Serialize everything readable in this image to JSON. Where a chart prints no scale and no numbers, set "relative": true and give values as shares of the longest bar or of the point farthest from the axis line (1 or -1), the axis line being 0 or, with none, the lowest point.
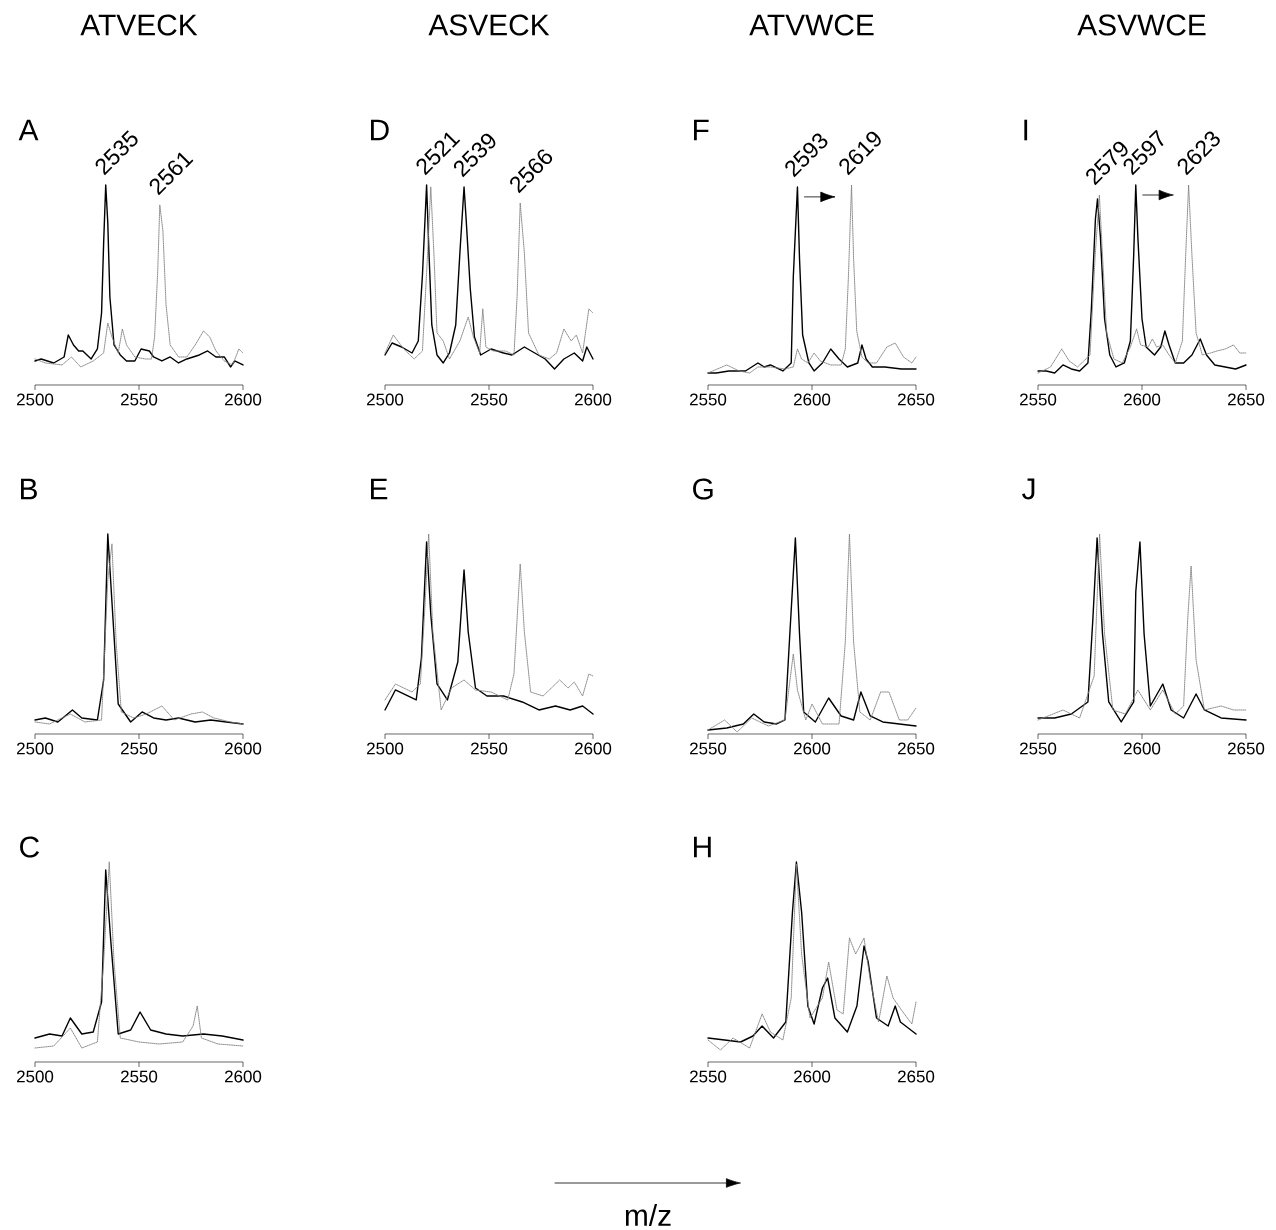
{
  "chart_data": [
    {
      "type": "line",
      "title": "ATVECK",
      "subtitle": "A",
      "relative": true,
      "xlim": [
        2500,
        2600
      ],
      "xticks": [
        2500,
        2550,
        2600
      ],
      "annotations": [
        {
          "text": "2535",
          "x": 2535,
          "y": 1
        },
        {
          "text": "2561",
          "x": 2561,
          "y": 0.9
        }
      ],
      "series": [
        {
          "color": "#000000",
          "line_style": "solid",
          "x": [
            2500,
            2503,
            2509,
            2514,
            2516,
            2518.5,
            2521,
            2523,
            2527,
            2530,
            2532,
            2533,
            2534,
            2535,
            2536,
            2538,
            2541,
            2544,
            2548,
            2551,
            2555,
            2557,
            2561,
            2565,
            2569,
            2573,
            2579,
            2583,
            2587,
            2591,
            2594,
            2596,
            2600
          ],
          "values": [
            0.12,
            0.13,
            0.11,
            0.14,
            0.25,
            0.2,
            0.17,
            0.17,
            0.13,
            0.18,
            0.36,
            0.71,
            1,
            0.81,
            0.44,
            0.2,
            0.15,
            0.12,
            0.12,
            0.18,
            0.17,
            0.14,
            0.12,
            0.14,
            0.11,
            0.13,
            0.15,
            0.17,
            0.14,
            0.14,
            0.09,
            0.12,
            0.1
          ]
        },
        {
          "color": "#808080",
          "line_style": "dotted",
          "x": [
            2500,
            2505,
            2513,
            2517.5,
            2522,
            2528,
            2533,
            2535,
            2537,
            2540,
            2542,
            2544,
            2548,
            2553,
            2556,
            2557.5,
            2559,
            2560,
            2561.5,
            2563,
            2565,
            2569,
            2573,
            2577,
            2581,
            2584,
            2587,
            2591,
            2595,
            2598,
            2600
          ],
          "values": [
            0.13,
            0.11,
            0.1,
            0.14,
            0.09,
            0.12,
            0.16,
            0.31,
            0.24,
            0.16,
            0.28,
            0.2,
            0.14,
            0.13,
            0.13,
            0.24,
            0.57,
            0.9,
            0.77,
            0.4,
            0.2,
            0.14,
            0.14,
            0.2,
            0.27,
            0.24,
            0.17,
            0.12,
            0.1,
            0.18,
            0.16
          ]
        }
      ]
    },
    {
      "type": "line",
      "title": "ASVECK",
      "subtitle": "D",
      "relative": true,
      "xlim": [
        2500,
        2600
      ],
      "xticks": [
        2500,
        2550,
        2600
      ],
      "annotations": [
        {
          "text": "2521",
          "x": 2521,
          "y": 1
        },
        {
          "text": "2539",
          "x": 2539,
          "y": 0.99
        },
        {
          "text": "2566",
          "x": 2566,
          "y": 0.91
        }
      ],
      "series": [
        {
          "color": "#000000",
          "line_style": "solid",
          "x": [
            2500,
            2503.4,
            2508,
            2513,
            2516,
            2518,
            2520,
            2521,
            2522.5,
            2525,
            2528,
            2531,
            2534,
            2536,
            2538,
            2539,
            2541,
            2543,
            2546,
            2551,
            2557,
            2561,
            2567,
            2572,
            2577,
            2581.5,
            2586,
            2591,
            2595,
            2597,
            2600
          ],
          "values": [
            0.15,
            0.21,
            0.19,
            0.16,
            0.22,
            0.55,
            1,
            0.7,
            0.3,
            0.15,
            0.11,
            0.16,
            0.3,
            0.66,
            0.99,
            0.83,
            0.48,
            0.24,
            0.15,
            0.18,
            0.16,
            0.15,
            0.19,
            0.16,
            0.13,
            0.08,
            0.13,
            0.16,
            0.12,
            0.19,
            0.13
          ]
        },
        {
          "color": "#808080",
          "line_style": "dotted",
          "x": [
            2500,
            2504,
            2509,
            2514,
            2518,
            2520.5,
            2522,
            2523.5,
            2525,
            2528,
            2531,
            2536,
            2540,
            2542.5,
            2545.5,
            2547,
            2548.5,
            2552,
            2558,
            2562,
            2563.5,
            2565,
            2567,
            2569,
            2574,
            2579,
            2582.5,
            2586,
            2589.5,
            2592,
            2595,
            2598,
            2600
          ],
          "values": [
            0.16,
            0.25,
            0.18,
            0.13,
            0.17,
            0.66,
            0.99,
            0.66,
            0.26,
            0.22,
            0.13,
            0.22,
            0.34,
            0.24,
            0.16,
            0.38,
            0.19,
            0.17,
            0.17,
            0.15,
            0.44,
            0.91,
            0.66,
            0.26,
            0.15,
            0.13,
            0.16,
            0.28,
            0.22,
            0.25,
            0.16,
            0.38,
            0.36
          ]
        }
      ]
    },
    {
      "type": "line",
      "title": "ATVWCE",
      "subtitle": "F",
      "relative": true,
      "xlim": [
        2550,
        2650
      ],
      "xticks": [
        2550,
        2600,
        2650
      ],
      "annotations": [
        {
          "text": "2593",
          "x": 2593,
          "y": 0.99
        },
        {
          "text": "2619",
          "x": 2619,
          "y": 1
        }
      ],
      "series": [
        {
          "color": "#000000",
          "line_style": "solid",
          "x": [
            2550,
            2554,
            2560,
            2568,
            2574,
            2577,
            2580,
            2586,
            2590,
            2591,
            2593,
            2594,
            2595.5,
            2598.5,
            2601,
            2605,
            2609,
            2613,
            2617,
            2622,
            2624,
            2626,
            2629,
            2635,
            2643,
            2650
          ],
          "values": [
            0.06,
            0.06,
            0.07,
            0.07,
            0.11,
            0.09,
            0.1,
            0.07,
            0.11,
            0.54,
            0.99,
            0.63,
            0.25,
            0.11,
            0.07,
            0.11,
            0.18,
            0.13,
            0.09,
            0.11,
            0.2,
            0.13,
            0.09,
            0.09,
            0.08,
            0.08
          ]
        },
        {
          "color": "#808080",
          "line_style": "dotted",
          "x": [
            2550,
            2559,
            2565,
            2570,
            2574,
            2580,
            2587,
            2591,
            2593,
            2595,
            2598,
            2601,
            2604,
            2609,
            2614,
            2616,
            2617.5,
            2619,
            2620,
            2621.5,
            2624,
            2627,
            2631,
            2636,
            2640,
            2644,
            2648,
            2650
          ],
          "values": [
            0.06,
            0.1,
            0.07,
            0.06,
            0.09,
            0.09,
            0.08,
            0.09,
            0.18,
            0.13,
            0.11,
            0.16,
            0.12,
            0.1,
            0.1,
            0.18,
            0.54,
            1,
            0.63,
            0.27,
            0.14,
            0.11,
            0.11,
            0.19,
            0.21,
            0.14,
            0.11,
            0.14
          ]
        }
      ]
    },
    {
      "type": "line",
      "title": "ASVWCE",
      "subtitle": "I",
      "relative": true,
      "xlim": [
        2550,
        2650
      ],
      "xticks": [
        2550,
        2600,
        2650
      ],
      "annotations": [
        {
          "text": "2579",
          "x": 2579,
          "y": 0.95
        },
        {
          "text": "2597",
          "x": 2597,
          "y": 1
        },
        {
          "text": "2623",
          "x": 2623,
          "y": 1
        }
      ],
      "series": [
        {
          "color": "#000000",
          "line_style": "solid",
          "x": [
            2550,
            2554,
            2558,
            2562,
            2566,
            2570,
            2574,
            2575.6,
            2577.6,
            2578.6,
            2580,
            2582,
            2584.5,
            2587.5,
            2591.5,
            2594.4,
            2596,
            2597,
            2598,
            2600,
            2602,
            2606,
            2609,
            2611,
            2613,
            2616,
            2620,
            2624,
            2628,
            2631,
            2635,
            2640,
            2645,
            2650
          ],
          "values": [
            0.07,
            0.07,
            0.06,
            0.1,
            0.08,
            0.07,
            0.11,
            0.37,
            0.83,
            0.93,
            0.74,
            0.33,
            0.15,
            0.09,
            0.11,
            0.22,
            0.65,
            1,
            0.74,
            0.33,
            0.19,
            0.15,
            0.19,
            0.27,
            0.2,
            0.11,
            0.11,
            0.15,
            0.23,
            0.15,
            0.1,
            0.09,
            0.08,
            0.1
          ]
        },
        {
          "color": "#808080",
          "line_style": "dotted",
          "x": [
            2550,
            2556,
            2561.4,
            2565,
            2569,
            2575,
            2577.5,
            2579.5,
            2581,
            2583,
            2586.5,
            2590.5,
            2594.4,
            2597.4,
            2599.3,
            2603,
            2605,
            2607,
            2610,
            2613,
            2616,
            2619.4,
            2621,
            2622.4,
            2624,
            2626,
            2629,
            2633,
            2636,
            2640,
            2644,
            2647,
            2650
          ],
          "values": [
            0.06,
            0.09,
            0.18,
            0.12,
            0.09,
            0.15,
            0.65,
            0.95,
            0.65,
            0.26,
            0.13,
            0.11,
            0.19,
            0.28,
            0.2,
            0.19,
            0.23,
            0.19,
            0.2,
            0.15,
            0.11,
            0.22,
            0.65,
            1,
            0.65,
            0.26,
            0.15,
            0.16,
            0.17,
            0.18,
            0.2,
            0.16,
            0.16
          ]
        }
      ]
    },
    {
      "type": "line",
      "title": "B",
      "relative": true,
      "xlim": [
        2500,
        2600
      ],
      "xticks": [
        2500,
        2550,
        2600
      ],
      "series": [
        {
          "color": "#000000",
          "line_style": "solid",
          "x": [
            2500,
            2505,
            2511,
            2518,
            2522.5,
            2530,
            2533,
            2535,
            2537,
            2540,
            2546,
            2551.5,
            2557,
            2563,
            2569,
            2577,
            2584.5,
            2592,
            2600
          ],
          "values": [
            0.07,
            0.08,
            0.06,
            0.12,
            0.08,
            0.07,
            0.27,
            1,
            0.66,
            0.15,
            0.06,
            0.11,
            0.08,
            0.07,
            0.08,
            0.06,
            0.07,
            0.06,
            0.05
          ]
        },
        {
          "color": "#808080",
          "line_style": "dotted",
          "x": [
            2500,
            2507,
            2517,
            2524,
            2532,
            2535,
            2537,
            2539,
            2541.5,
            2547.5,
            2553.5,
            2561,
            2567,
            2575,
            2580.5,
            2586,
            2594,
            2600
          ],
          "values": [
            0.06,
            0.05,
            0.1,
            0.06,
            0.07,
            0.77,
            0.95,
            0.46,
            0.11,
            0.08,
            0.1,
            0.14,
            0.07,
            0.1,
            0.11,
            0.08,
            0.06,
            0.05
          ]
        }
      ]
    },
    {
      "type": "line",
      "title": "E",
      "relative": true,
      "xlim": [
        2500,
        2600
      ],
      "xticks": [
        2500,
        2550,
        2600
      ],
      "series": [
        {
          "color": "#000000",
          "line_style": "solid",
          "x": [
            2500,
            2505,
            2511,
            2515,
            2517.5,
            2520,
            2522,
            2525,
            2530,
            2535,
            2538,
            2540,
            2543.5,
            2549,
            2557,
            2566,
            2574,
            2582,
            2589,
            2595,
            2600
          ],
          "values": [
            0.12,
            0.22,
            0.19,
            0.17,
            0.38,
            0.96,
            0.6,
            0.25,
            0.17,
            0.36,
            0.82,
            0.51,
            0.23,
            0.19,
            0.19,
            0.16,
            0.12,
            0.14,
            0.12,
            0.14,
            0.1
          ]
        },
        {
          "color": "#808080",
          "line_style": "dotted",
          "x": [
            2500,
            2505,
            2513,
            2517,
            2519,
            2521,
            2523,
            2527,
            2532,
            2538,
            2543.5,
            2551,
            2559,
            2562,
            2565,
            2567,
            2570,
            2576,
            2584,
            2588,
            2591,
            2595,
            2598,
            2600
          ],
          "values": [
            0.17,
            0.25,
            0.21,
            0.25,
            0.6,
            1,
            0.51,
            0.12,
            0.23,
            0.27,
            0.22,
            0.21,
            0.17,
            0.3,
            0.85,
            0.51,
            0.21,
            0.19,
            0.27,
            0.23,
            0.26,
            0.19,
            0.3,
            0.29
          ]
        }
      ]
    },
    {
      "type": "line",
      "title": "G",
      "relative": true,
      "xlim": [
        2550,
        2650
      ],
      "xticks": [
        2550,
        2600,
        2650
      ],
      "series": [
        {
          "color": "#000000",
          "line_style": "solid",
          "x": [
            2550,
            2559,
            2567,
            2572,
            2577,
            2583,
            2587,
            2589.5,
            2592,
            2594,
            2596,
            2601.6,
            2608,
            2614,
            2620,
            2623.5,
            2628,
            2634,
            2642,
            2650
          ],
          "values": [
            0.02,
            0.03,
            0.05,
            0.1,
            0.06,
            0.05,
            0.07,
            0.53,
            0.98,
            0.5,
            0.11,
            0.06,
            0.18,
            0.09,
            0.07,
            0.21,
            0.09,
            0.06,
            0.05,
            0.04
          ]
        },
        {
          "color": "#808080",
          "line_style": "dotted",
          "x": [
            2550,
            2558,
            2564,
            2571,
            2579,
            2587,
            2591,
            2593,
            2597,
            2600,
            2605,
            2613,
            2616,
            2618,
            2620,
            2623,
            2628,
            2633,
            2637,
            2642,
            2646,
            2650
          ],
          "values": [
            0.02,
            0.07,
            0.01,
            0.08,
            0.04,
            0.07,
            0.4,
            0.22,
            0.07,
            0.15,
            0.05,
            0.05,
            0.46,
            1,
            0.46,
            0.11,
            0.07,
            0.21,
            0.21,
            0.07,
            0.07,
            0.13
          ]
        }
      ]
    },
    {
      "type": "line",
      "title": "J",
      "relative": true,
      "xlim": [
        2550,
        2650
      ],
      "xticks": [
        2550,
        2600,
        2650
      ],
      "series": [
        {
          "color": "#000000",
          "line_style": "solid",
          "x": [
            2550,
            2558,
            2566,
            2574,
            2576.4,
            2578.4,
            2581,
            2584,
            2590,
            2596,
            2597,
            2599,
            2601,
            2604,
            2610,
            2614,
            2620,
            2626,
            2630,
            2638,
            2650
          ],
          "values": [
            0.08,
            0.08,
            0.1,
            0.16,
            0.58,
            0.98,
            0.5,
            0.16,
            0.06,
            0.16,
            0.71,
            0.96,
            0.5,
            0.14,
            0.25,
            0.12,
            0.08,
            0.2,
            0.12,
            0.08,
            0.07
          ]
        },
        {
          "color": "#808080",
          "line_style": "dotted",
          "x": [
            2550,
            2562,
            2570,
            2577,
            2579.6,
            2582,
            2586,
            2592,
            2598,
            2604,
            2610,
            2616,
            2620,
            2622,
            2623.6,
            2626,
            2630,
            2638,
            2644,
            2650
          ],
          "values": [
            0.07,
            0.12,
            0.08,
            0.29,
            1,
            0.5,
            0.12,
            0.1,
            0.22,
            0.12,
            0.22,
            0.1,
            0.14,
            0.58,
            0.84,
            0.37,
            0.12,
            0.14,
            0.12,
            0.12
          ]
        }
      ]
    },
    {
      "type": "line",
      "title": "C",
      "relative": true,
      "xlim": [
        2500,
        2600
      ],
      "xticks": [
        2500,
        2550,
        2600
      ],
      "series": [
        {
          "color": "#000000",
          "line_style": "solid",
          "x": [
            2500,
            2507,
            2513,
            2517,
            2522.5,
            2528,
            2532,
            2534,
            2536.4,
            2540,
            2546,
            2550.5,
            2555.6,
            2563,
            2571,
            2581,
            2590,
            2600
          ],
          "values": [
            0.12,
            0.14,
            0.13,
            0.22,
            0.14,
            0.15,
            0.3,
            0.96,
            0.61,
            0.14,
            0.16,
            0.25,
            0.16,
            0.14,
            0.13,
            0.14,
            0.13,
            0.11
          ]
        },
        {
          "color": "#808080",
          "line_style": "dotted",
          "x": [
            2500,
            2509,
            2517,
            2522.5,
            2530,
            2533,
            2535.7,
            2538,
            2541,
            2550,
            2559.7,
            2571,
            2576,
            2578,
            2580,
            2588,
            2600
          ],
          "values": [
            0.07,
            0.08,
            0.17,
            0.07,
            0.1,
            0.5,
            1,
            0.5,
            0.12,
            0.1,
            0.09,
            0.1,
            0.18,
            0.28,
            0.12,
            0.09,
            0.08
          ]
        }
      ]
    },
    {
      "type": "line",
      "title": "H",
      "relative": true,
      "xlim": [
        2550,
        2650
      ],
      "xticks": [
        2550,
        2600,
        2650
      ],
      "annotations": [
        "m/z"
      ],
      "series": [
        {
          "color": "#000000",
          "line_style": "solid",
          "x": [
            2550,
            2558,
            2565.7,
            2571.6,
            2576,
            2581.5,
            2587.4,
            2590.6,
            2592.5,
            2595,
            2598,
            2601,
            2605,
            2607.5,
            2611,
            2617,
            2621.6,
            2625,
            2627,
            2631,
            2636.6,
            2640,
            2642.5,
            2650
          ],
          "values": [
            0.12,
            0.11,
            0.1,
            0.13,
            0.18,
            0.12,
            0.2,
            0.75,
            1,
            0.75,
            0.28,
            0.19,
            0.37,
            0.42,
            0.22,
            0.15,
            0.28,
            0.58,
            0.5,
            0.22,
            0.18,
            0.28,
            0.2,
            0.14
          ]
        },
        {
          "color": "#808080",
          "line_style": "dotted",
          "x": [
            2550,
            2556,
            2562,
            2570,
            2576,
            2580,
            2586,
            2590,
            2592.5,
            2595,
            2599,
            2605,
            2608,
            2612,
            2615,
            2618,
            2621,
            2625,
            2628,
            2632,
            2636,
            2639,
            2643,
            2648,
            2650
          ],
          "values": [
            0.11,
            0.06,
            0.12,
            0.07,
            0.24,
            0.15,
            0.11,
            0.32,
            0.99,
            0.54,
            0.22,
            0.32,
            0.5,
            0.26,
            0.24,
            0.62,
            0.54,
            0.62,
            0.41,
            0.2,
            0.43,
            0.32,
            0.26,
            0.19,
            0.3
          ]
        }
      ]
    }
  ]
}
